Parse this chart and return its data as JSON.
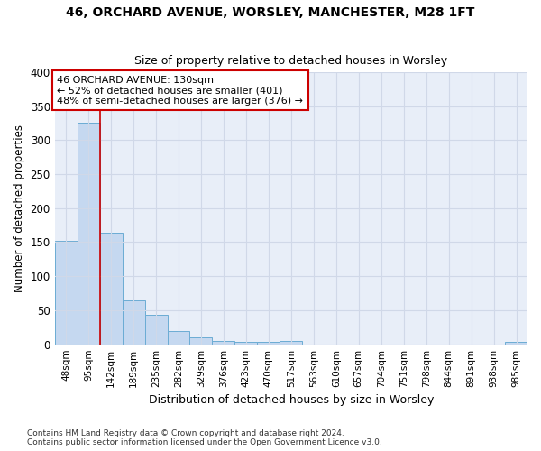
{
  "title1": "46, ORCHARD AVENUE, WORSLEY, MANCHESTER, M28 1FT",
  "title2": "Size of property relative to detached houses in Worsley",
  "xlabel": "Distribution of detached houses by size in Worsley",
  "ylabel": "Number of detached properties",
  "bar_labels": [
    "48sqm",
    "95sqm",
    "142sqm",
    "189sqm",
    "235sqm",
    "282sqm",
    "329sqm",
    "376sqm",
    "423sqm",
    "470sqm",
    "517sqm",
    "563sqm",
    "610sqm",
    "657sqm",
    "704sqm",
    "751sqm",
    "798sqm",
    "844sqm",
    "891sqm",
    "938sqm",
    "985sqm"
  ],
  "bar_values": [
    152,
    325,
    164,
    64,
    43,
    20,
    10,
    5,
    4,
    4,
    5,
    0,
    0,
    0,
    0,
    0,
    0,
    0,
    0,
    0,
    4
  ],
  "bar_color": "#c5d8f0",
  "bar_edge_color": "#6bacd4",
  "vline_x": 1.5,
  "vline_color": "#cc0000",
  "annotation_line1": "46 ORCHARD AVENUE: 130sqm",
  "annotation_line2": "← 52% of detached houses are smaller (401)",
  "annotation_line3": "48% of semi-detached houses are larger (376) →",
  "annotation_box_color": "#ffffff",
  "annotation_box_edge_color": "#cc0000",
  "ylim": [
    0,
    400
  ],
  "yticks": [
    0,
    50,
    100,
    150,
    200,
    250,
    300,
    350,
    400
  ],
  "grid_color": "#d0d8e8",
  "plot_bg_color": "#e8eef8",
  "fig_bg_color": "#ffffff",
  "footer1": "Contains HM Land Registry data © Crown copyright and database right 2024.",
  "footer2": "Contains public sector information licensed under the Open Government Licence v3.0."
}
